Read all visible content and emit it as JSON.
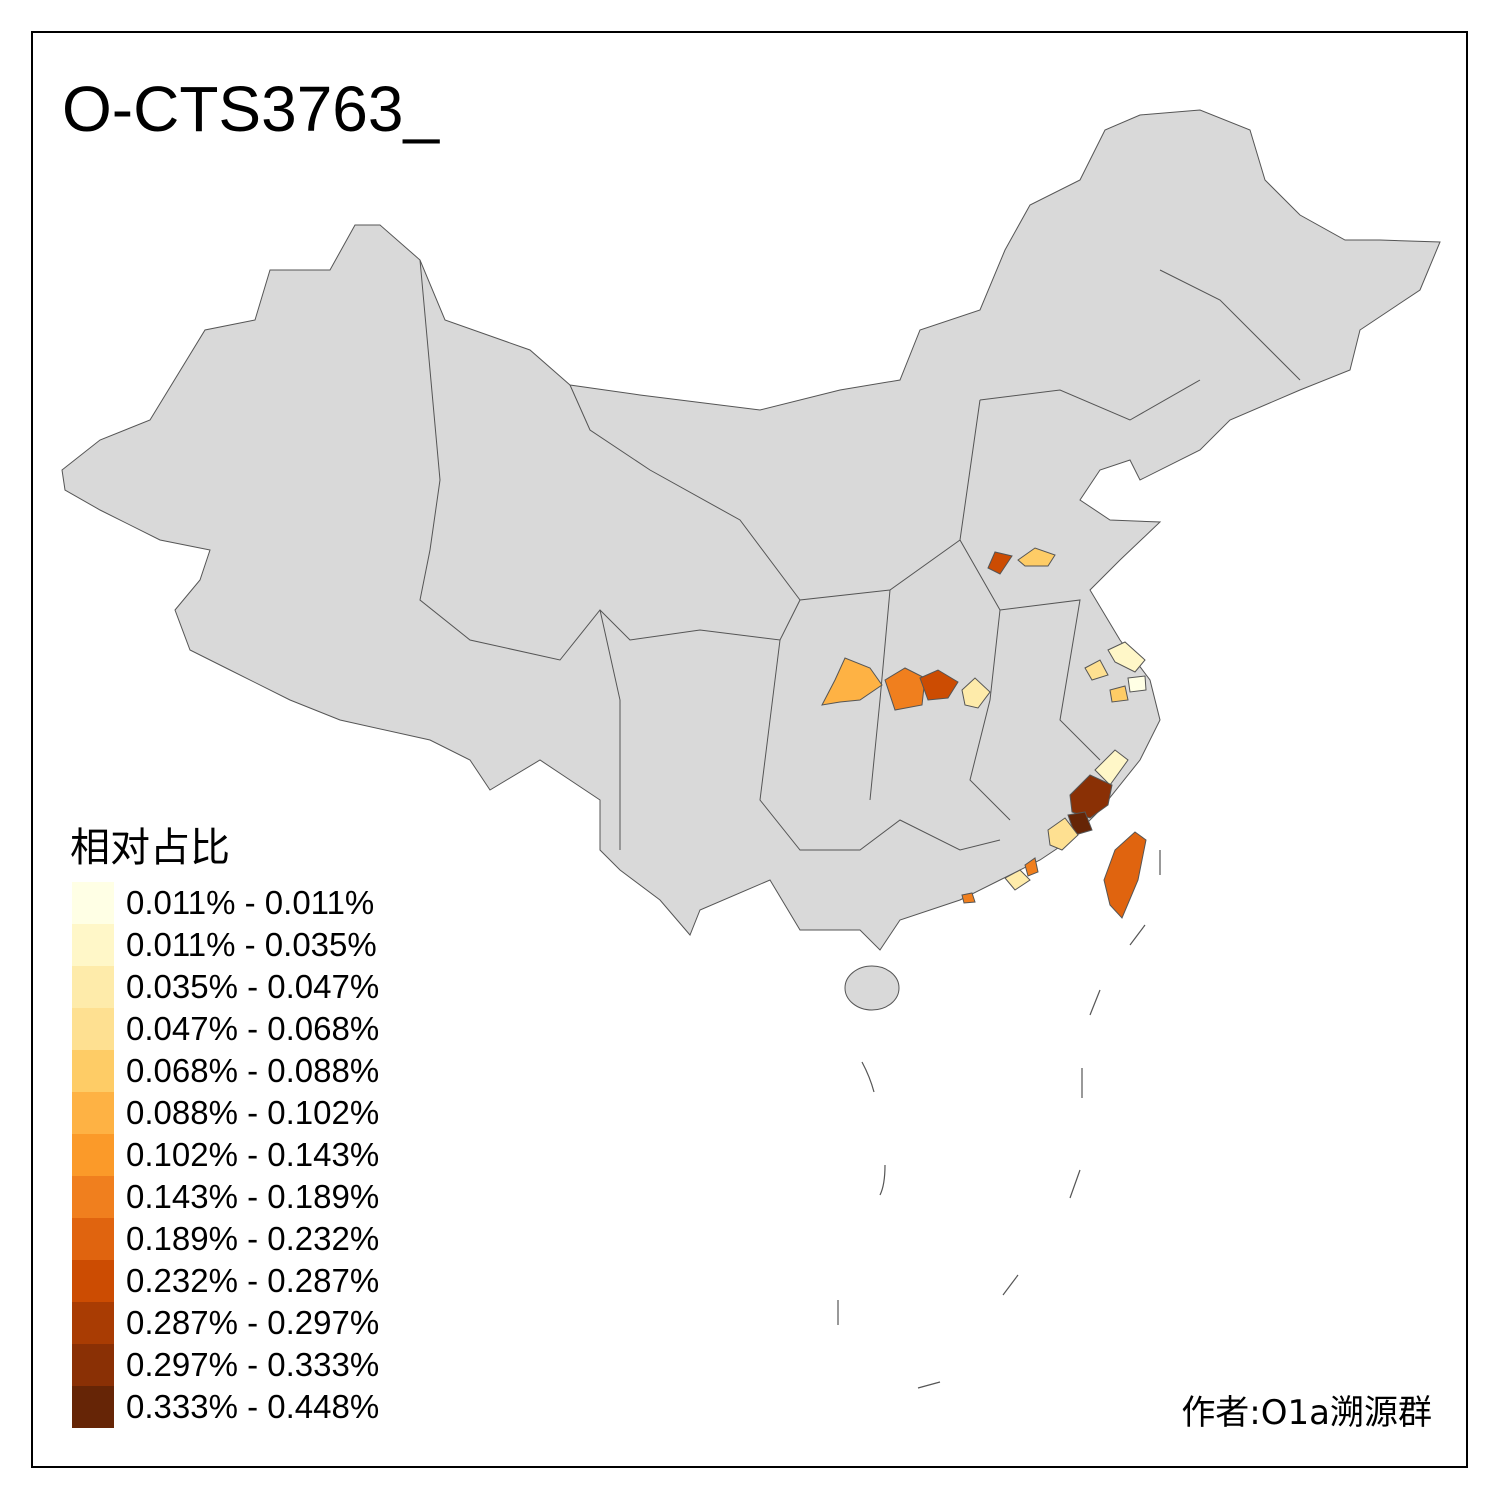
{
  "title": "O-CTS3763_",
  "legend": {
    "title": "相对占比",
    "items": [
      {
        "label": "0.011% - 0.011%",
        "color": "#FFFFE5"
      },
      {
        "label": "0.011% - 0.035%",
        "color": "#FFF7C8"
      },
      {
        "label": "0.035% - 0.047%",
        "color": "#FEEBAA"
      },
      {
        "label": "0.047% - 0.068%",
        "color": "#FEE091"
      },
      {
        "label": "0.068% - 0.088%",
        "color": "#FECC66"
      },
      {
        "label": "0.088% - 0.102%",
        "color": "#FEB244"
      },
      {
        "label": "0.102% - 0.143%",
        "color": "#FB9A29"
      },
      {
        "label": "0.143% - 0.189%",
        "color": "#F07F1E"
      },
      {
        "label": "0.189% - 0.232%",
        "color": "#E0640F"
      },
      {
        "label": "0.232% - 0.287%",
        "color": "#CC4C02"
      },
      {
        "label": "0.287% - 0.297%",
        "color": "#A93C03"
      },
      {
        "label": "0.297% - 0.333%",
        "color": "#8A3005"
      },
      {
        "label": "0.333% - 0.448%",
        "color": "#662506"
      }
    ]
  },
  "map_colors": {
    "no_data": "#D9D9D9",
    "border": "#555555"
  },
  "credit": "作者:O1a溯源群"
}
